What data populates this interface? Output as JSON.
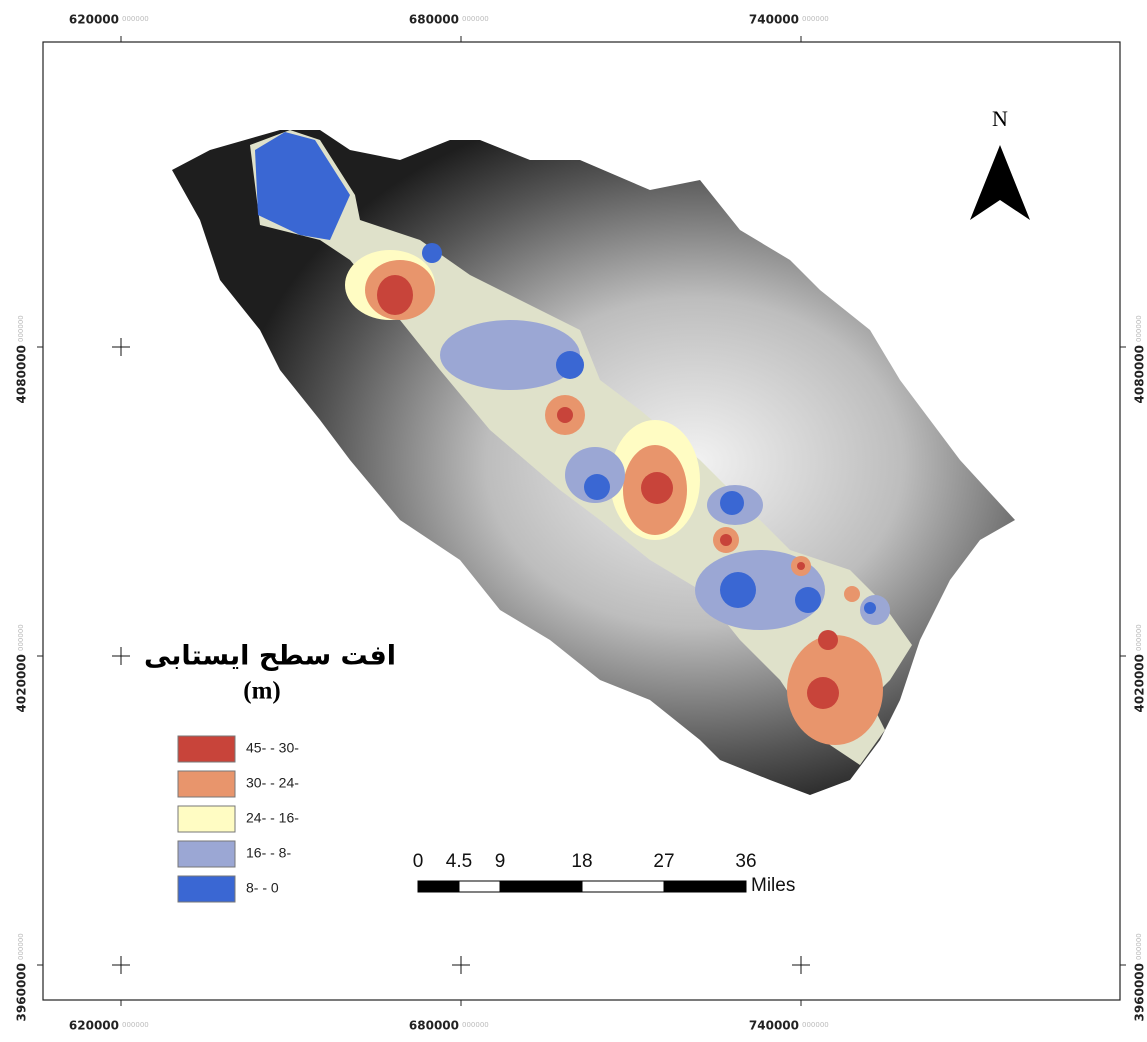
{
  "map": {
    "eastings": [
      620000,
      680000,
      740000
    ],
    "northings": [
      4080000,
      4020000,
      3960000
    ],
    "tick_suffix": "000000",
    "north": "N",
    "legend": {
      "title": "افت سطح ایستابی",
      "unit": "(m)",
      "items": [
        {
          "label": "45- - 30-",
          "color": "#c8443a"
        },
        {
          "label": "30- - 24-",
          "color": "#e8956c"
        },
        {
          "label": "24- - 16-",
          "color": "#fffcc3"
        },
        {
          "label": "16- - 8-",
          "color": "#9ba7d4"
        },
        {
          "label": "8- - 0",
          "color": "#3a67d3"
        }
      ]
    },
    "scale": {
      "values": [
        0,
        4.5,
        9,
        18,
        27,
        36
      ],
      "unit": "Miles"
    }
  }
}
